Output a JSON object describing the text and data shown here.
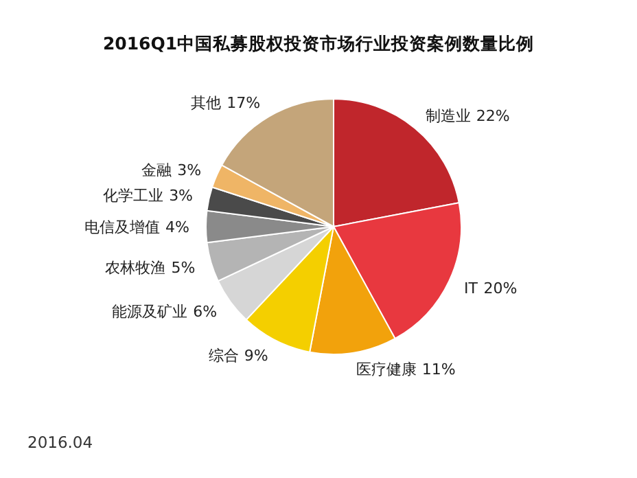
{
  "chart_data": {
    "type": "pie",
    "title": "2016Q1中国私募股权投资市场行业投资案例数量比例",
    "categories": [
      "制造业",
      "IT",
      "医疗健康",
      "综合",
      "能源及矿业",
      "农林牧渔",
      "电信及增值",
      "化学工业",
      "金融",
      "其他"
    ],
    "values": [
      22,
      20,
      11,
      9,
      6,
      5,
      4,
      3,
      3,
      17
    ],
    "value_labels": [
      "22%",
      "20%",
      "11%",
      "9%",
      "6%",
      "5%",
      "4%",
      "3%",
      "3%",
      "17%"
    ],
    "colors": [
      "#c0262c",
      "#e8383f",
      "#f2a20c",
      "#f4cf00",
      "#d6d6d6",
      "#b4b4b4",
      "#8a8a8a",
      "#4a4a4a",
      "#efb566",
      "#c4a57a"
    ],
    "annotations": [
      "2016.04"
    ]
  }
}
